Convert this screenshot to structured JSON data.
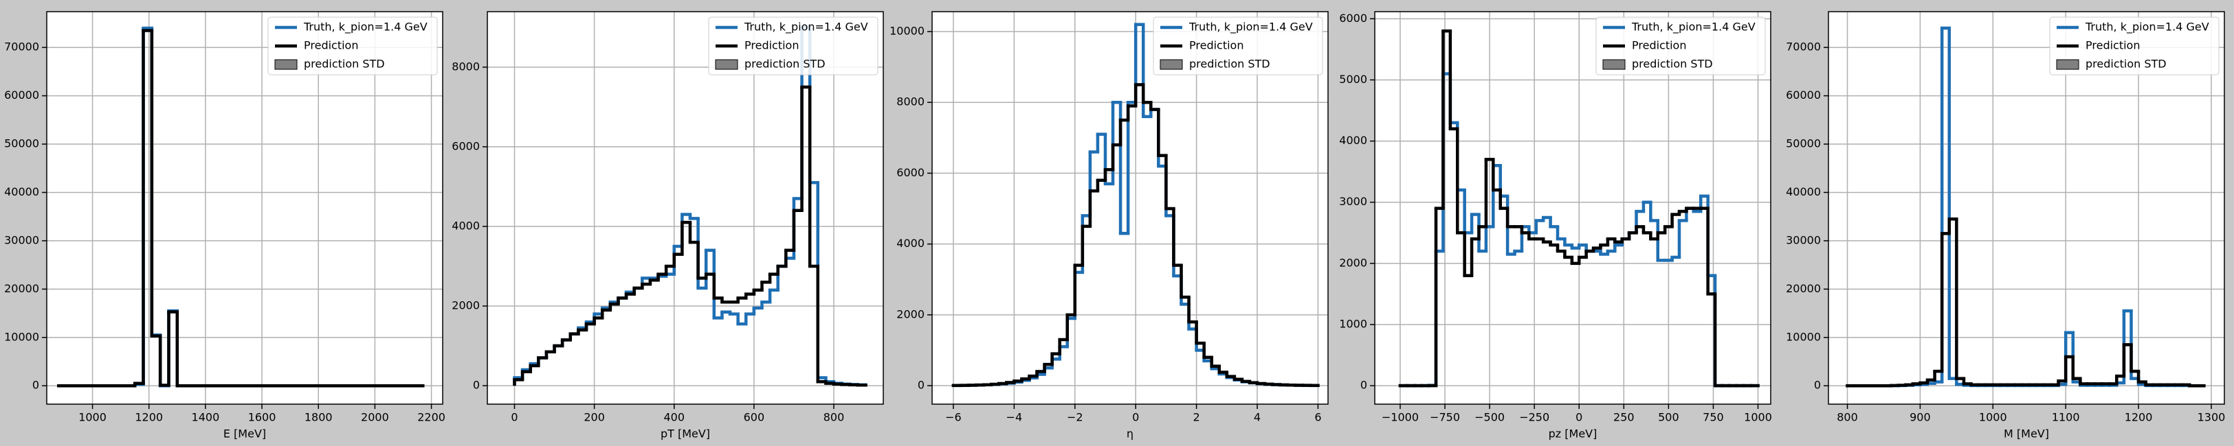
{
  "chart_data": [
    {
      "type": "histogram",
      "xlabel": "E [MeV]",
      "bins": [
        880,
        910,
        940,
        970,
        1000,
        1030,
        1060,
        1090,
        1120,
        1150,
        1180,
        1210,
        1240,
        1270,
        1300,
        1330,
        1360,
        1390,
        1420,
        1450,
        1480,
        1510,
        1540,
        1570,
        1600,
        1630,
        1660,
        1690,
        1720,
        1750,
        1780,
        1810,
        1840,
        1870,
        1900,
        1930,
        1960,
        1990,
        2020,
        2050,
        2080,
        2110,
        2140,
        2170
      ],
      "series": [
        {
          "name": "Truth, k_pion=1.4 GeV",
          "color": "#1f6fb4",
          "values": [
            0,
            0,
            0,
            0,
            0,
            0,
            0,
            0,
            0,
            300,
            74000,
            10500,
            0,
            15500,
            0,
            0,
            0,
            0,
            0,
            0,
            0,
            0,
            0,
            0,
            0,
            0,
            0,
            0,
            0,
            0,
            0,
            0,
            0,
            0,
            0,
            0,
            0,
            0,
            0,
            0,
            0,
            0,
            0
          ]
        },
        {
          "name": "Prediction",
          "color": "#000000",
          "values": [
            0,
            0,
            0,
            0,
            0,
            0,
            0,
            0,
            0,
            500,
            73500,
            10300,
            100,
            15300,
            0,
            0,
            0,
            0,
            0,
            0,
            0,
            0,
            0,
            0,
            0,
            0,
            0,
            0,
            0,
            0,
            0,
            0,
            0,
            0,
            0,
            0,
            0,
            0,
            0,
            0,
            0,
            0,
            0
          ]
        },
        {
          "name": "prediction STD",
          "color": "#808080"
        }
      ],
      "xlim": [
        838,
        2240
      ],
      "ylim": [
        -3800,
        77400
      ],
      "xticks": [
        1000,
        1200,
        1400,
        1600,
        1800,
        2000,
        2200
      ],
      "yticks": [
        0,
        10000,
        20000,
        30000,
        40000,
        50000,
        60000,
        70000
      ],
      "grid": true,
      "legend": "upper right"
    },
    {
      "type": "histogram",
      "xlabel": "pT [MeV]",
      "bins": [
        0,
        20,
        40,
        60,
        80,
        100,
        120,
        140,
        160,
        180,
        200,
        220,
        240,
        260,
        280,
        300,
        320,
        340,
        360,
        380,
        400,
        420,
        440,
        460,
        480,
        500,
        520,
        540,
        560,
        580,
        600,
        620,
        640,
        660,
        680,
        700,
        720,
        740,
        760,
        780,
        800,
        820,
        840,
        860,
        880
      ],
      "series": [
        {
          "name": "Truth, k_pion=1.4 GeV",
          "color": "#1f6fb4",
          "values": [
            200,
            400,
            550,
            700,
            850,
            1000,
            1150,
            1300,
            1450,
            1600,
            1800,
            1950,
            2100,
            2200,
            2350,
            2450,
            2700,
            2700,
            2750,
            2800,
            3500,
            4300,
            4200,
            2450,
            3400,
            1700,
            1850,
            1800,
            1550,
            1800,
            1950,
            2100,
            2400,
            3000,
            3200,
            4700,
            9000,
            5100,
            200,
            100,
            60,
            40,
            30,
            20
          ]
        },
        {
          "name": "Prediction",
          "color": "#000000",
          "values": [
            150,
            350,
            500,
            700,
            850,
            1000,
            1150,
            1300,
            1400,
            1550,
            1700,
            1900,
            2050,
            2200,
            2300,
            2450,
            2550,
            2650,
            2800,
            3000,
            3300,
            4100,
            3600,
            2700,
            2800,
            2200,
            2100,
            2100,
            2200,
            2300,
            2400,
            2600,
            2800,
            3000,
            3400,
            4400,
            7500,
            3000,
            100,
            60,
            40,
            30,
            20,
            15
          ]
        },
        {
          "name": "prediction STD",
          "color": "#808080"
        }
      ],
      "xlim": [
        -68,
        924
      ],
      "ylim": [
        -464,
        9393
      ],
      "xticks": [
        0,
        200,
        400,
        600,
        800
      ],
      "yticks": [
        0,
        2000,
        4000,
        6000,
        8000
      ],
      "grid": true,
      "legend": "upper right"
    },
    {
      "type": "histogram",
      "xlabel": "η",
      "bins": [
        -6,
        -5.75,
        -5.5,
        -5.25,
        -5,
        -4.75,
        -4.5,
        -4.25,
        -4,
        -3.75,
        -3.5,
        -3.25,
        -3,
        -2.75,
        -2.5,
        -2.25,
        -2,
        -1.75,
        -1.5,
        -1.25,
        -1,
        -0.75,
        -0.5,
        -0.25,
        0,
        0.25,
        0.5,
        0.75,
        1,
        1.25,
        1.5,
        1.75,
        2,
        2.25,
        2.5,
        2.75,
        3,
        3.25,
        3.5,
        3.75,
        4,
        4.25,
        4.5,
        4.75,
        5,
        5.25,
        5.5,
        5.75,
        6
      ],
      "series": [
        {
          "name": "Truth, k_pion=1.4 GeV",
          "color": "#1f6fb4",
          "values": [
            5,
            8,
            12,
            18,
            25,
            35,
            50,
            70,
            100,
            150,
            220,
            320,
            500,
            750,
            1100,
            1900,
            3200,
            4800,
            6600,
            7100,
            5700,
            8000,
            4300,
            8000,
            10200,
            7600,
            7800,
            6200,
            4800,
            3100,
            2300,
            1600,
            1000,
            700,
            480,
            330,
            230,
            160,
            110,
            80,
            55,
            40,
            30,
            20,
            15,
            10,
            8,
            5
          ]
        },
        {
          "name": "Prediction",
          "color": "#000000",
          "values": [
            5,
            8,
            12,
            18,
            25,
            40,
            60,
            90,
            130,
            190,
            270,
            400,
            600,
            900,
            1300,
            2000,
            3400,
            4500,
            5500,
            5800,
            6100,
            6800,
            7500,
            7900,
            8500,
            8000,
            7800,
            6500,
            5000,
            3400,
            2500,
            1800,
            1200,
            800,
            550,
            380,
            260,
            180,
            120,
            85,
            60,
            42,
            30,
            22,
            16,
            11,
            8,
            5
          ]
        },
        {
          "name": "prediction STD",
          "color": "#808080"
        }
      ],
      "xlim": [
        -6.7,
        6.33
      ],
      "ylim": [
        -522,
        10562
      ],
      "xticks": [
        {
          "value": -6,
          "label": "−6"
        },
        {
          "value": -4,
          "label": "−4"
        },
        {
          "value": -2,
          "label": "−2"
        },
        0,
        2,
        4,
        6
      ],
      "yticks": [
        0,
        2000,
        4000,
        6000,
        8000,
        10000
      ],
      "grid": true,
      "legend": "upper right"
    },
    {
      "type": "histogram",
      "xlabel": "pz [MeV]",
      "bins": [
        -1000,
        -960,
        -920,
        -880,
        -840,
        -800,
        -760,
        -720,
        -680,
        -640,
        -600,
        -560,
        -520,
        -480,
        -440,
        -400,
        -360,
        -320,
        -280,
        -240,
        -200,
        -160,
        -120,
        -80,
        -40,
        0,
        40,
        80,
        120,
        160,
        200,
        240,
        280,
        320,
        360,
        400,
        440,
        480,
        520,
        560,
        600,
        640,
        680,
        720,
        760,
        800,
        840,
        880,
        920,
        960,
        1000
      ],
      "series": [
        {
          "name": "Truth, k_pion=1.4 GeV",
          "color": "#1f6fb4",
          "values": [
            0,
            0,
            0,
            0,
            5,
            2200,
            5100,
            4300,
            3200,
            2500,
            2800,
            2200,
            2600,
            3600,
            3100,
            2150,
            2200,
            2600,
            2500,
            2700,
            2750,
            2600,
            2400,
            2300,
            2250,
            2300,
            2200,
            2200,
            2150,
            2200,
            2300,
            2400,
            2500,
            2850,
            3000,
            2700,
            2050,
            2050,
            2100,
            2700,
            2900,
            2850,
            3100,
            1800,
            0,
            0,
            0,
            0,
            0,
            0
          ]
        },
        {
          "name": "Prediction",
          "color": "#000000",
          "values": [
            0,
            0,
            0,
            0,
            0,
            2900,
            5800,
            4200,
            2500,
            1800,
            2400,
            2600,
            3700,
            3200,
            2900,
            2600,
            2600,
            2500,
            2400,
            2400,
            2350,
            2300,
            2200,
            2100,
            2000,
            2100,
            2200,
            2250,
            2300,
            2400,
            2350,
            2400,
            2500,
            2600,
            2500,
            2400,
            2500,
            2600,
            2800,
            2850,
            2900,
            2900,
            2900,
            1500,
            0,
            0,
            0,
            0,
            0,
            0
          ]
        },
        {
          "name": "prediction STD",
          "color": "#808080"
        }
      ],
      "xlim": [
        -1142,
        1071
      ],
      "ylim": [
        -302,
        6116
      ],
      "xticks": [
        {
          "value": -1000,
          "label": "−1000"
        },
        {
          "value": -750,
          "label": "−750"
        },
        {
          "value": -500,
          "label": "−500"
        },
        {
          "value": -250,
          "label": "−250"
        },
        0,
        250,
        500,
        750,
        1000
      ],
      "yticks": [
        0,
        1000,
        2000,
        3000,
        4000,
        5000,
        6000
      ],
      "grid": true,
      "legend": "upper right"
    },
    {
      "type": "histogram",
      "xlabel": "M [MeV]",
      "bins": [
        800,
        810,
        820,
        830,
        840,
        850,
        860,
        870,
        880,
        890,
        900,
        910,
        920,
        930,
        940,
        950,
        960,
        970,
        980,
        990,
        1000,
        1010,
        1020,
        1030,
        1040,
        1050,
        1060,
        1070,
        1080,
        1090,
        1100,
        1110,
        1120,
        1130,
        1140,
        1150,
        1160,
        1170,
        1180,
        1190,
        1200,
        1210,
        1220,
        1230,
        1240,
        1250,
        1260,
        1270,
        1280,
        1290
      ],
      "series": [
        {
          "name": "Truth, k_pion=1.4 GeV",
          "color": "#1f6fb4",
          "values": [
            0,
            0,
            0,
            0,
            0,
            0,
            20,
            50,
            100,
            200,
            300,
            500,
            800,
            74000,
            1500,
            300,
            100,
            50,
            50,
            50,
            50,
            50,
            50,
            50,
            50,
            50,
            50,
            50,
            50,
            300,
            11000,
            800,
            100,
            100,
            100,
            100,
            100,
            600,
            15500,
            1500,
            300,
            50,
            50,
            50,
            50,
            50,
            50,
            0,
            0
          ]
        },
        {
          "name": "Prediction",
          "color": "#000000",
          "values": [
            0,
            0,
            0,
            0,
            0,
            0,
            50,
            100,
            200,
            400,
            600,
            1200,
            3000,
            31500,
            34500,
            1500,
            400,
            200,
            200,
            200,
            200,
            200,
            200,
            200,
            200,
            200,
            200,
            200,
            200,
            1000,
            6000,
            1500,
            400,
            400,
            400,
            400,
            400,
            2000,
            8500,
            3000,
            800,
            200,
            200,
            200,
            200,
            200,
            200,
            0,
            0
          ]
        },
        {
          "name": "prediction STD",
          "color": "#808080"
        }
      ],
      "xlim": [
        774,
        1318
      ],
      "ylim": [
        -3800,
        77400
      ],
      "xticks": [
        800,
        900,
        1000,
        1100,
        1200,
        1300
      ],
      "yticks": [
        0,
        10000,
        20000,
        30000,
        40000,
        50000,
        60000,
        70000
      ],
      "grid": true,
      "legend": "upper right"
    }
  ]
}
